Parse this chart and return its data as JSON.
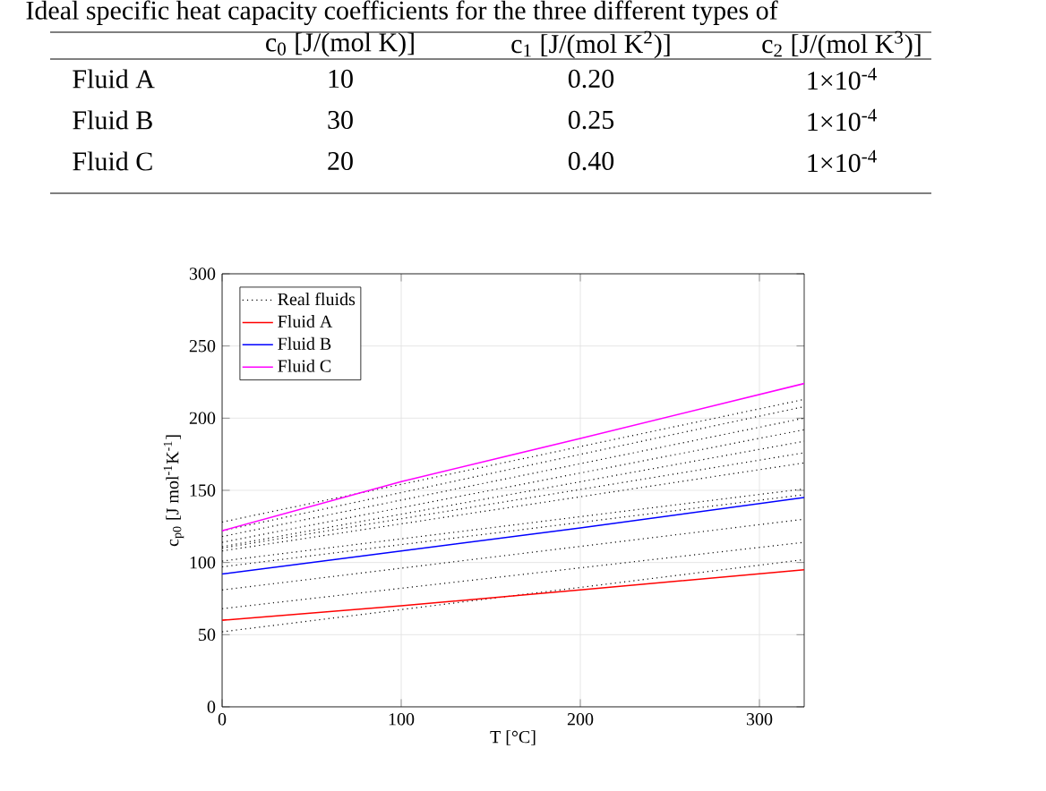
{
  "chart_data": {
    "type": "line",
    "xlabel": "T [°C]",
    "ylabel": "c$_{p0}$ [J mol$^{-1}$K$^{-1}$]",
    "xlim": [
      0,
      325
    ],
    "ylim": [
      0,
      300
    ],
    "xticks": [
      0,
      100,
      200,
      300
    ],
    "yticks": [
      0,
      50,
      100,
      150,
      200,
      250,
      300
    ],
    "grid": true,
    "legend": "top left",
    "marker": "none",
    "annotations": [
      "Ideal specific heat capacity coefficients for the three different types of",
      "c$_{0}$ [J/(mol K)]",
      "c$_{1}$ [J/(mol K$^{2}$)]",
      "c$_{2}$ [J/(mol K$^{3}$)]",
      "Fluid A",
      "10",
      "0.20",
      "1×10$^{-4}$",
      "Fluid B",
      "30",
      "0.25",
      "1×10$^{-4}$",
      "Fluid C",
      "20",
      "0.40",
      "1×10$^{-4}$"
    ],
    "series": [
      {
        "name": "Real fluids",
        "color": "#000000",
        "line_style": "dotted",
        "x": [
          0,
          325
        ],
        "values": [
          128,
          213
        ]
      },
      {
        "color": "#000000",
        "line_style": "dotted",
        "x": [
          0,
          325
        ],
        "values": [
          122,
          208
        ]
      },
      {
        "color": "#000000",
        "line_style": "dotted",
        "x": [
          0,
          325
        ],
        "values": [
          118,
          200
        ]
      },
      {
        "color": "#000000",
        "line_style": "dotted",
        "x": [
          0,
          325
        ],
        "values": [
          114,
          192
        ]
      },
      {
        "color": "#000000",
        "line_style": "dotted",
        "x": [
          0,
          325
        ],
        "values": [
          111,
          184
        ]
      },
      {
        "color": "#000000",
        "line_style": "dotted",
        "x": [
          0,
          325
        ],
        "values": [
          110,
          176
        ]
      },
      {
        "color": "#000000",
        "line_style": "dotted",
        "x": [
          0,
          325
        ],
        "values": [
          108,
          169
        ]
      },
      {
        "color": "#000000",
        "line_style": "dotted",
        "x": [
          0,
          325
        ],
        "values": [
          101,
          151
        ]
      },
      {
        "color": "#000000",
        "line_style": "dotted",
        "x": [
          0,
          325
        ],
        "values": [
          97,
          147
        ]
      },
      {
        "color": "#000000",
        "line_style": "dotted",
        "x": [
          0,
          325
        ],
        "values": [
          81,
          130
        ]
      },
      {
        "color": "#000000",
        "line_style": "dotted",
        "x": [
          0,
          325
        ],
        "values": [
          68,
          114
        ]
      },
      {
        "color": "#000000",
        "line_style": "dotted",
        "x": [
          0,
          325
        ],
        "values": [
          52,
          102
        ]
      },
      {
        "name": "Fluid A",
        "color": "#ff0000",
        "line_style": "solid",
        "x": [
          0,
          100,
          200,
          325
        ],
        "values": [
          60,
          70,
          81,
          95
        ]
      },
      {
        "name": "Fluid B",
        "color": "#0000ff",
        "line_style": "solid",
        "x": [
          0,
          100,
          200,
          325
        ],
        "values": [
          92,
          108,
          124,
          145
        ]
      },
      {
        "name": "Fluid C",
        "color": "#ff00ff",
        "line_style": "solid",
        "x": [
          0,
          100,
          200,
          325
        ],
        "values": [
          122,
          156,
          186,
          224
        ]
      }
    ]
  }
}
